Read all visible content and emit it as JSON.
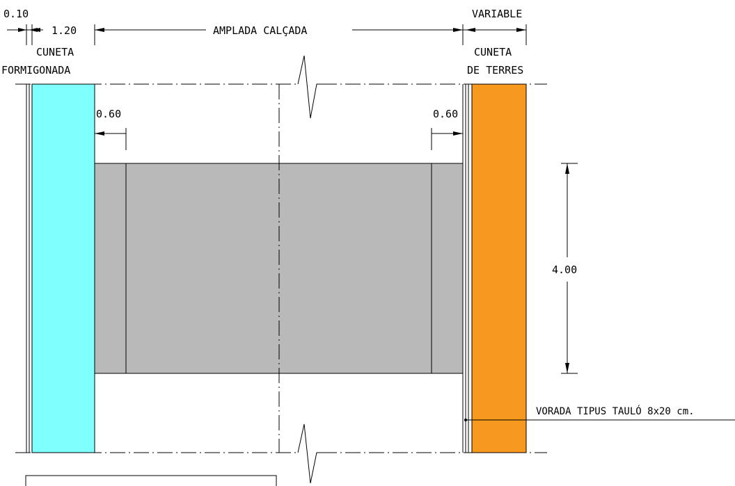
{
  "drawing": {
    "dims": {
      "d_010": "0.10",
      "d_120": "1.20",
      "amplada_calcada": "AMPLADA CALÇADA",
      "variable": "VARIABLE",
      "d_060_left": "0.60",
      "d_060_right": "0.60",
      "d_400": "4.00"
    },
    "labels": {
      "cuneta_left_line1": "CUNETA",
      "cuneta_left_line2": "FORMIGONADA",
      "cuneta_right_line1": "CUNETA",
      "cuneta_right_line2": "DE TERRES",
      "vorada": "VORADA TIPUS TAULÓ 8x20 cm."
    },
    "colors": {
      "cuneta_formigonada": "#80ffff",
      "cuneta_terres": "#f7991e",
      "paviment": "#b9b9b9",
      "line": "#000000",
      "background": "#ffffff"
    }
  }
}
